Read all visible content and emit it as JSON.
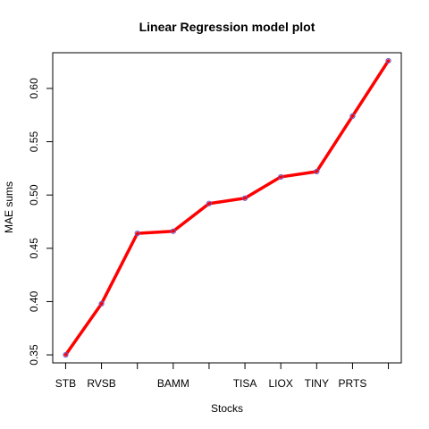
{
  "chart_data": {
    "type": "line",
    "title": "Linear Regression model plot",
    "xlabel": "Stocks",
    "ylabel": "MAE sums",
    "categories": [
      "STB",
      "RVSB",
      "",
      "BAMM",
      "",
      "TISA",
      "LIOX",
      "TINY",
      "PRTS",
      ""
    ],
    "series": [
      {
        "values": [
          0.35,
          0.398,
          0.464,
          0.466,
          0.492,
          0.497,
          0.517,
          0.522,
          0.574,
          0.626
        ],
        "color": "#ff0000",
        "marker_color": "#6a5acd"
      }
    ],
    "yticks": [
      0.35,
      0.4,
      0.45,
      0.5,
      0.55,
      0.6
    ],
    "ytick_labels": [
      "0.35",
      "0.40",
      "0.45",
      "0.50",
      "0.55",
      "0.60"
    ],
    "ylim": [
      0.3425,
      0.6335
    ],
    "grid": false,
    "legend": "none"
  }
}
